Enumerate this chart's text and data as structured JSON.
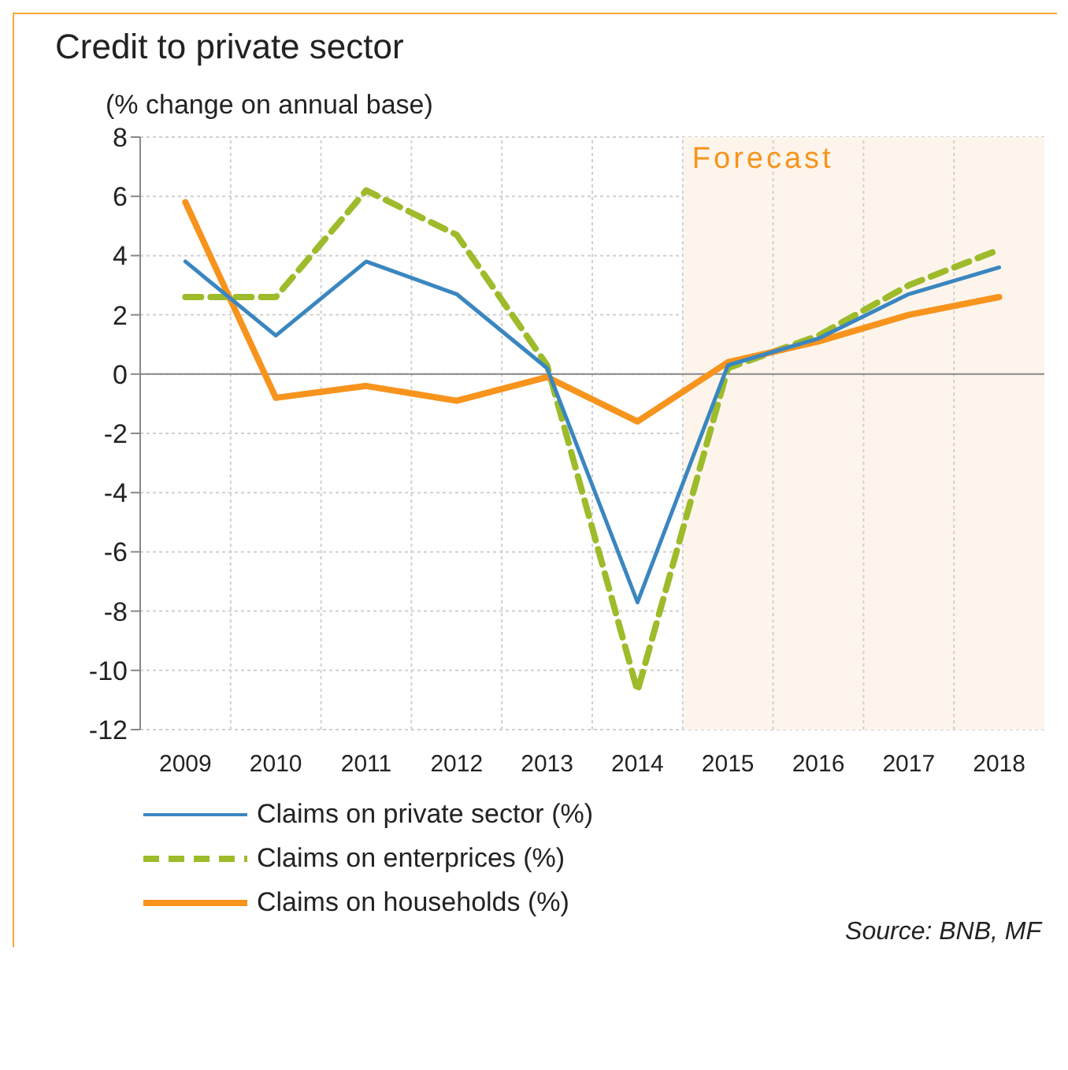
{
  "chart_data": {
    "type": "line",
    "title": "Credit to private sector",
    "ylabel": "(% change on annual base)",
    "categories": [
      "2009",
      "2010",
      "2011",
      "2012",
      "2013",
      "2014",
      "2015",
      "2016",
      "2017",
      "2018"
    ],
    "series": [
      {
        "name": "Claims on private sector (%)",
        "color": "#3a86c0",
        "line_style": "solid",
        "values": [
          3.8,
          1.3,
          3.8,
          2.7,
          0.2,
          -7.7,
          0.3,
          1.2,
          2.7,
          3.6
        ]
      },
      {
        "name": "Claims on enterprices (%)",
        "color": "#9dbb2a",
        "line_style": "dashed",
        "values": [
          2.6,
          2.6,
          6.2,
          4.7,
          0.3,
          -10.7,
          0.2,
          1.3,
          3.0,
          4.2
        ]
      },
      {
        "name": "Claims on households (%)",
        "color": "#f7941d",
        "line_style": "solid",
        "values": [
          5.8,
          -0.8,
          -0.4,
          -0.9,
          -0.1,
          -1.6,
          0.4,
          1.1,
          2.0,
          2.6
        ]
      }
    ],
    "ylim": [
      -12,
      8
    ],
    "yticks": [
      -12,
      -10,
      -8,
      -6,
      -4,
      -2,
      0,
      2,
      4,
      6,
      8
    ],
    "bands": [
      {
        "axis": "x",
        "from": "2015",
        "to": "2018",
        "label": "Forecast",
        "color": "#fdf5ec"
      }
    ],
    "grid": true,
    "legend": "bottom",
    "marker": "none",
    "annotations": [
      "Source: BNB, MF"
    ]
  }
}
